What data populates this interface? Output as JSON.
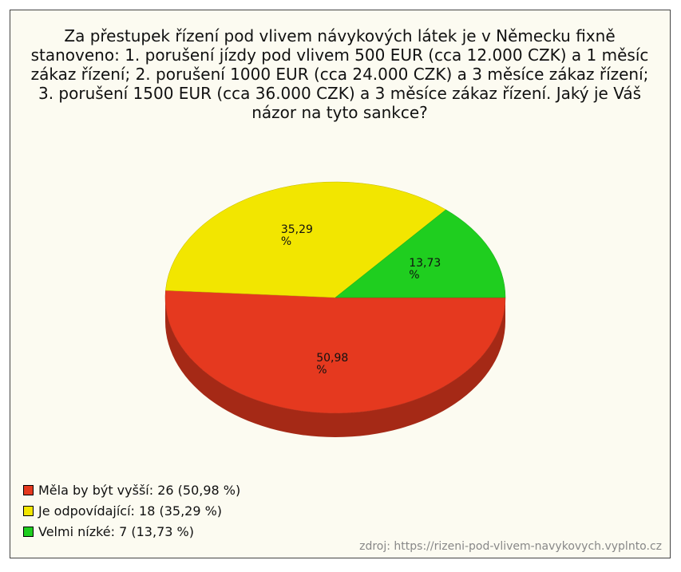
{
  "chart_data": {
    "type": "pie",
    "title": "Za přestupek řízení pod vlivem návykových látek je v Německu fixně stanoveno: 1. porušení jízdy pod vlivem 500 EUR (cca 12.000 CZK) a 1 měsíc zákaz řízení; 2. porušení 1000 EUR (cca 24.000 CZK) a 3 měsíce zákaz řízení; 3. porušení 1500 EUR (cca 36.000 CZK) a 3 měsíce zákaz řízení. Jaký je Váš názor na tyto sankce?",
    "categories": [
      "Měla by být vyšší: 26 (50,98 %)",
      "Je odpovídající: 18 (35,29 %)",
      "Velmi nízké: 7 (13,73 %)"
    ],
    "values": [
      50.98,
      35.29,
      13.73
    ],
    "value_labels": [
      "50,98\n%",
      "35,29\n%",
      "13,73\n%"
    ],
    "colors": [
      "#e5391f",
      "#f2e600",
      "#1fce1f"
    ],
    "source": "zdroj: https://rizeni-pod-vlivem-navykovych.vyplnto.cz"
  }
}
